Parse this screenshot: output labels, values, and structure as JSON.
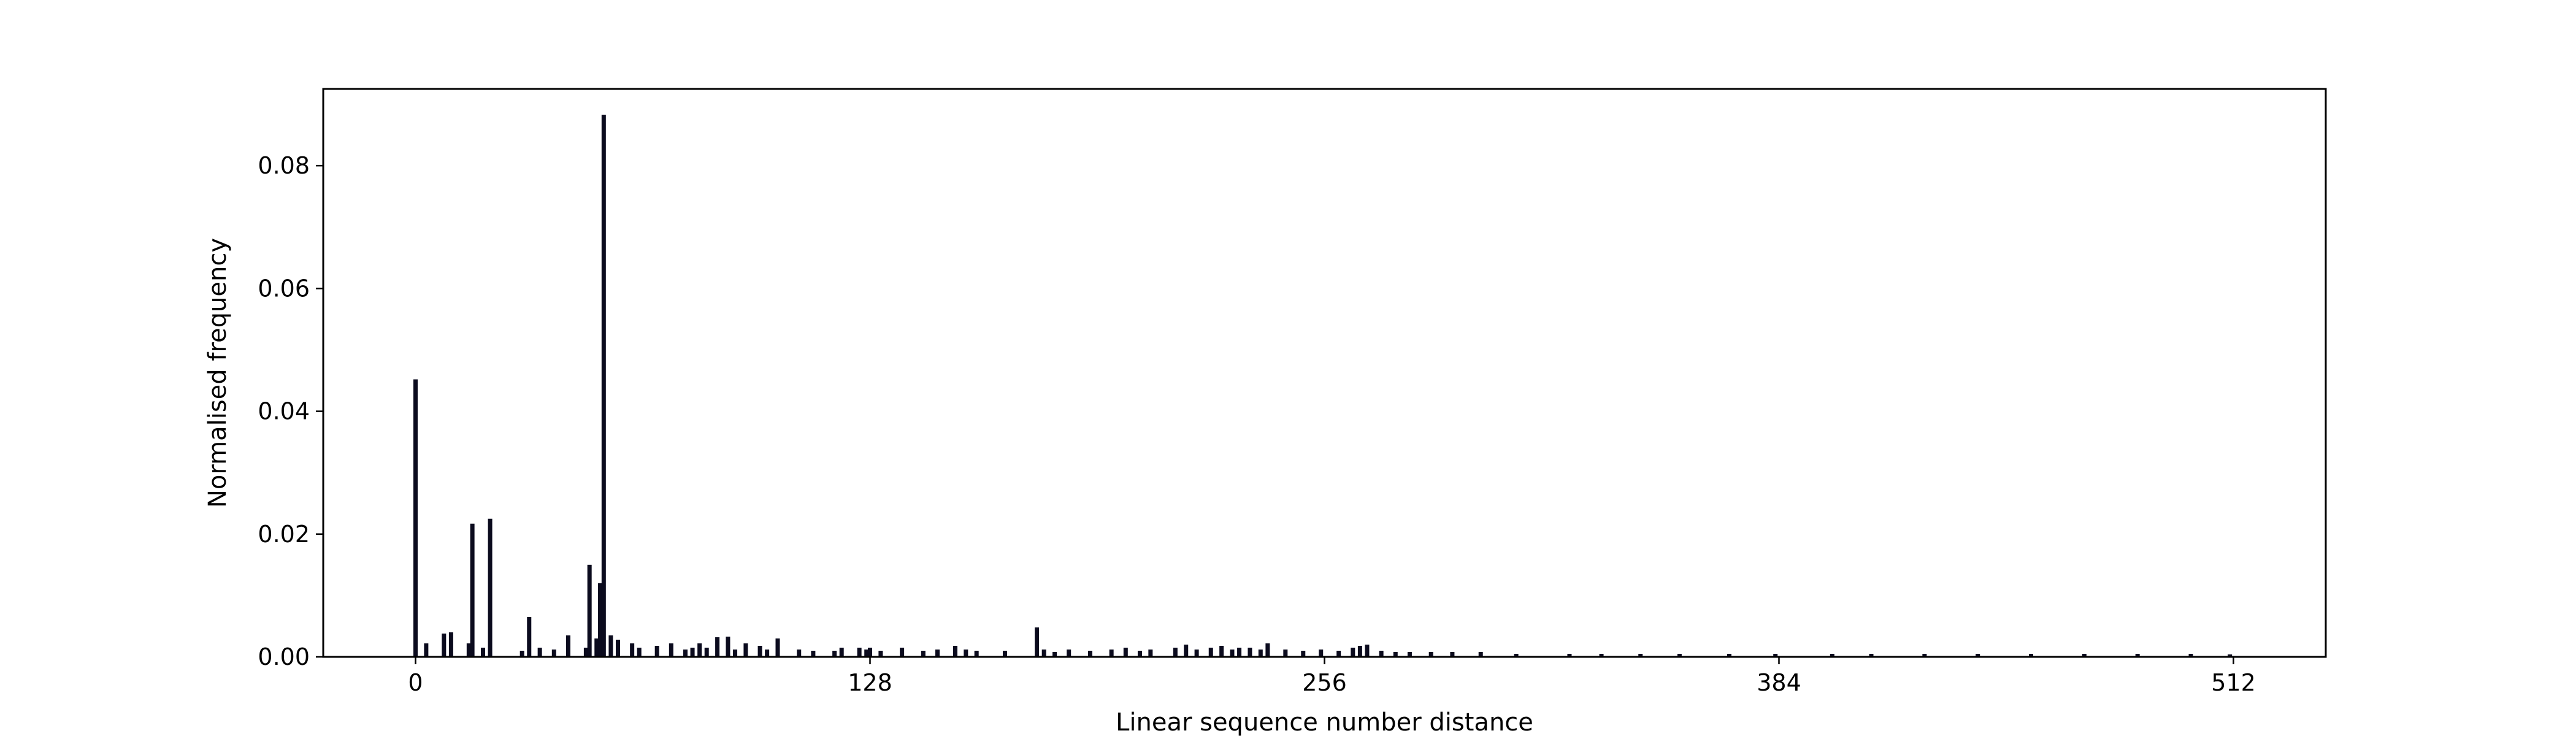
{
  "chart_data": {
    "type": "bar",
    "title": "",
    "xlabel": "Linear sequence number distance",
    "ylabel": "Normalised frequency",
    "xlim": [
      -26,
      538
    ],
    "ylim": [
      0,
      0.0925
    ],
    "grid": false,
    "legend": "none",
    "bar_color": "#0b0b1e",
    "x_ticks": [
      0,
      128,
      256,
      384,
      512
    ],
    "x_tick_labels": [
      "0",
      "128",
      "256",
      "384",
      "512"
    ],
    "y_ticks": [
      0,
      0.02,
      0.04,
      0.06,
      0.08
    ],
    "y_tick_labels": [
      "0.00",
      "0.02",
      "0.04",
      "0.06",
      "0.08"
    ],
    "series": [
      {
        "x": [
          0,
          3,
          8,
          10,
          15,
          16,
          19,
          21,
          30,
          32,
          35,
          39,
          43,
          48,
          49,
          51,
          52,
          53,
          55,
          57,
          61,
          63,
          68,
          72,
          76,
          78,
          80,
          82,
          85,
          88,
          90,
          93,
          97,
          99,
          102,
          108,
          112,
          118,
          120,
          125,
          127,
          128,
          131,
          137,
          143,
          147,
          152,
          155,
          158,
          166,
          175,
          177,
          180,
          184,
          190,
          196,
          200,
          204,
          207,
          214,
          217,
          220,
          224,
          227,
          230,
          232,
          235,
          238,
          240,
          245,
          250,
          255,
          260,
          264,
          266,
          268,
          272,
          276,
          280,
          286,
          292,
          300,
          310,
          325,
          334,
          345,
          356,
          370,
          383,
          399,
          410,
          425,
          440,
          455,
          470,
          485,
          500,
          511
        ],
        "values": [
          0.0452,
          0.0022,
          0.0038,
          0.004,
          0.0022,
          0.0217,
          0.0015,
          0.0225,
          0.001,
          0.0065,
          0.0015,
          0.0012,
          0.0035,
          0.0015,
          0.015,
          0.003,
          0.012,
          0.0883,
          0.0035,
          0.0028,
          0.0022,
          0.0015,
          0.0018,
          0.0022,
          0.0012,
          0.0015,
          0.0022,
          0.0015,
          0.0032,
          0.0033,
          0.0012,
          0.0022,
          0.0018,
          0.0012,
          0.003,
          0.0012,
          0.001,
          0.001,
          0.0015,
          0.0015,
          0.0012,
          0.0015,
          0.001,
          0.0015,
          0.001,
          0.0012,
          0.0018,
          0.0012,
          0.001,
          0.001,
          0.0048,
          0.0012,
          0.0008,
          0.0012,
          0.001,
          0.0012,
          0.0015,
          0.001,
          0.0012,
          0.0015,
          0.002,
          0.0012,
          0.0015,
          0.0018,
          0.0012,
          0.0015,
          0.0015,
          0.0012,
          0.0022,
          0.0012,
          0.001,
          0.0012,
          0.001,
          0.0015,
          0.0018,
          0.002,
          0.001,
          0.0008,
          0.0008,
          0.0008,
          0.0008,
          0.0008,
          0.0005,
          0.0005,
          0.0005,
          0.0005,
          0.0005,
          0.0005,
          0.0005,
          0.0005,
          0.0005,
          0.0005,
          0.0005,
          0.0005,
          0.0005,
          0.0005,
          0.0005,
          0.0004
        ]
      }
    ]
  }
}
